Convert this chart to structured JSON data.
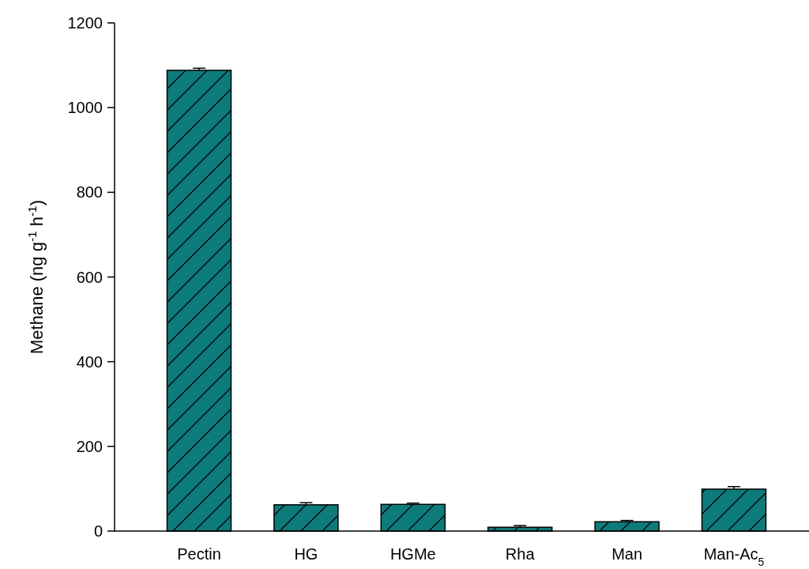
{
  "chart_data": {
    "type": "bar",
    "ylabel": "Methane (ng g$^{-1}$ h$^{-1}$)",
    "categories": [
      "Pectin",
      "HG",
      "HGMe",
      "Rha",
      "Man",
      "Man-Ac$_{5}$"
    ],
    "values": [
      1088,
      62,
      63,
      9,
      22,
      99
    ],
    "errors": [
      5,
      5,
      3,
      4,
      3,
      6
    ],
    "color": "#0e7b7b",
    "ylim": [
      0,
      1200
    ],
    "yticks": [
      0,
      200,
      400,
      600,
      800,
      1000,
      1200
    ],
    "grid": false
  }
}
